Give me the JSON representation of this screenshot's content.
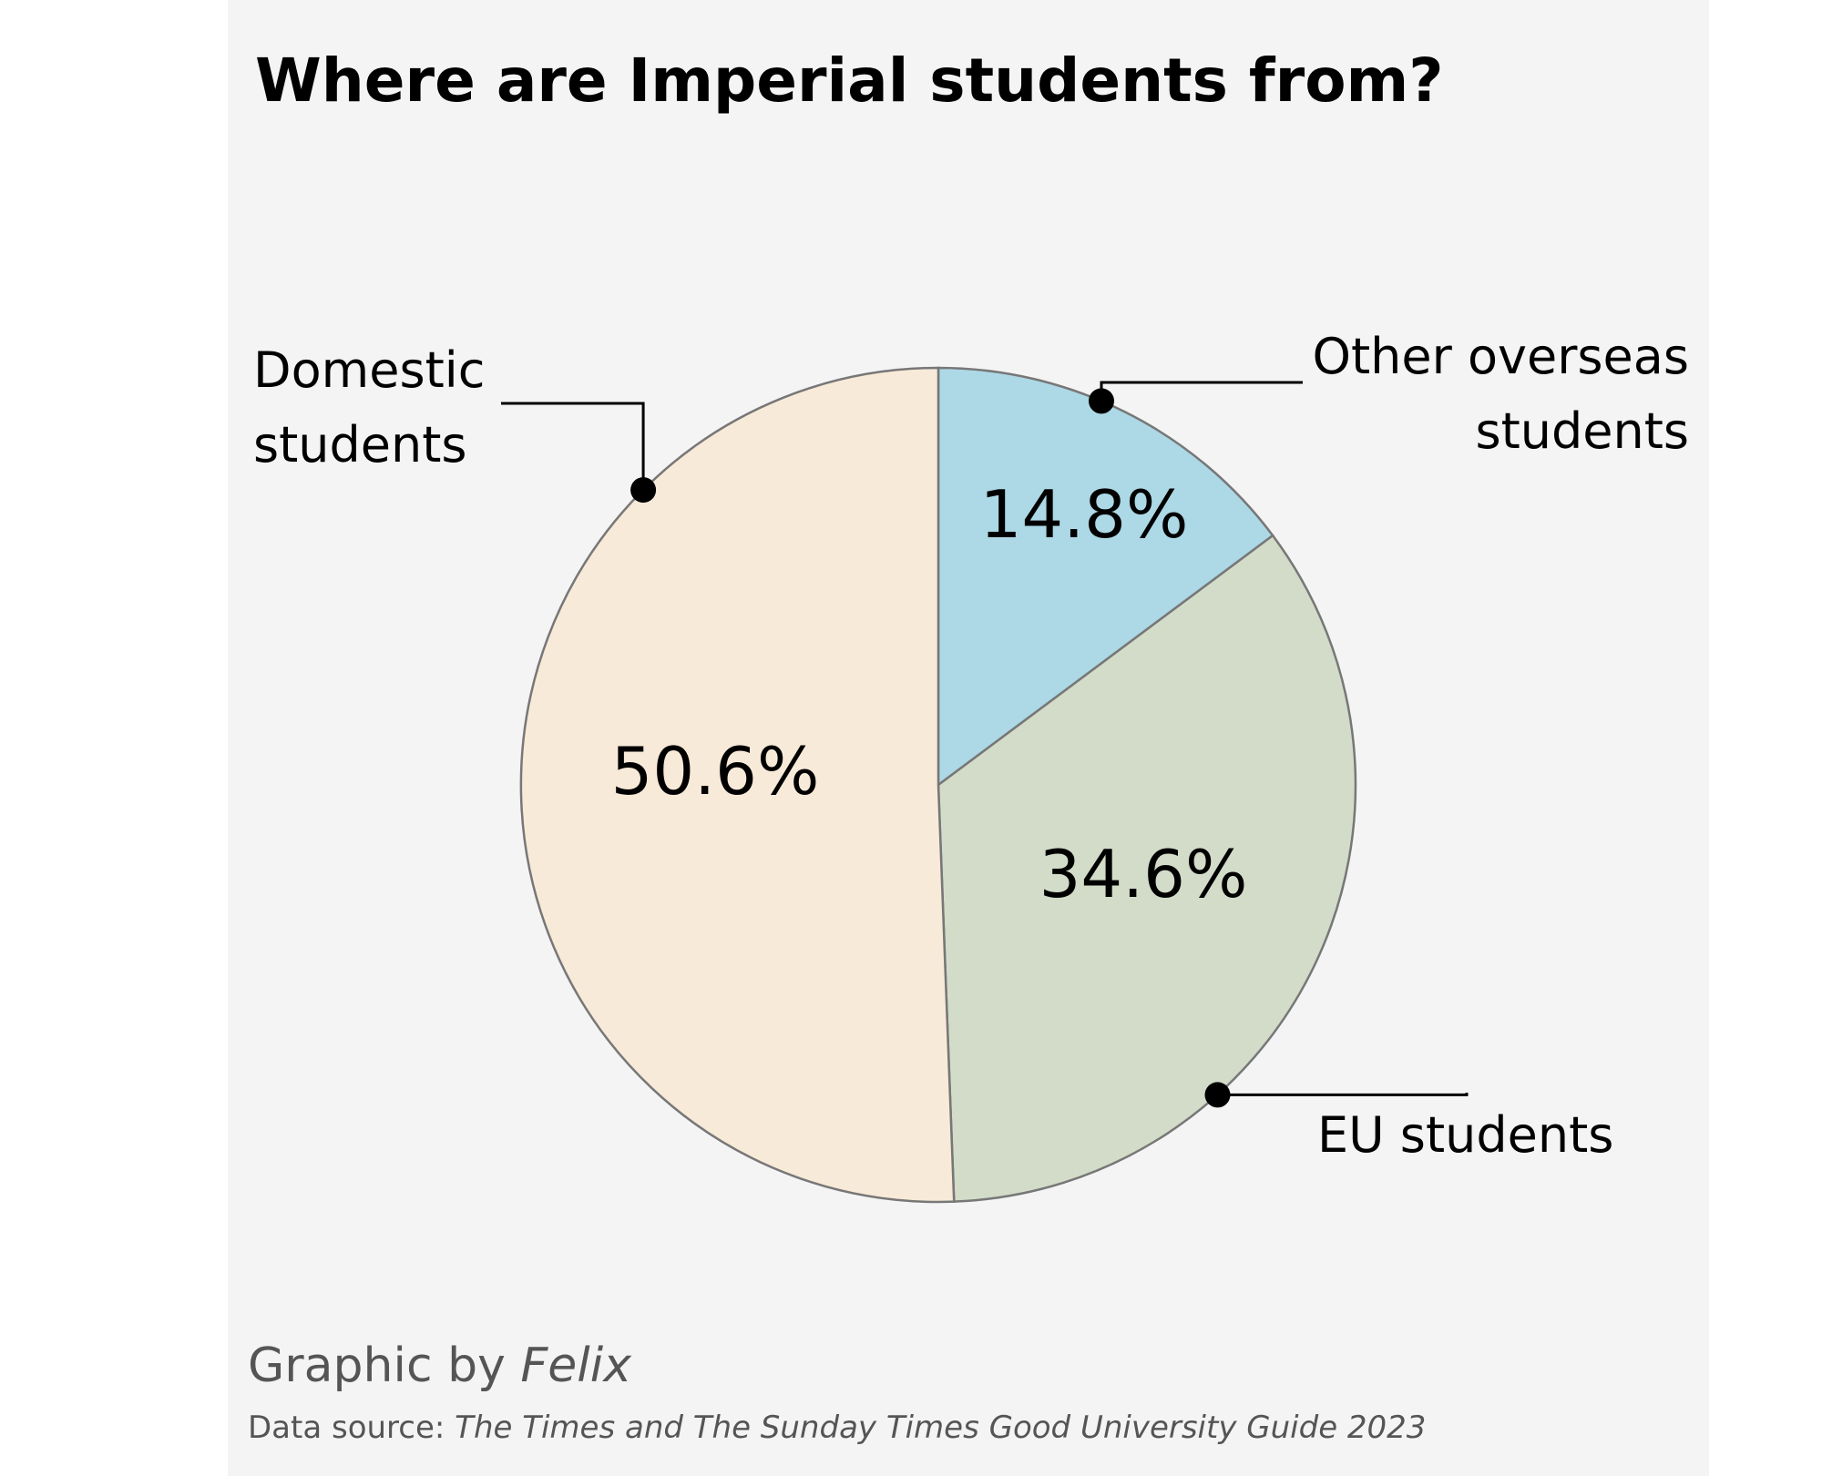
{
  "chart_data": {
    "type": "pie",
    "title": "Where are Imperial students from?",
    "slices": [
      {
        "label": "Other overseas students",
        "label_lines": [
          "Other overseas",
          "students"
        ],
        "value": 14.8,
        "display": "14.8%",
        "color": "#add8e6"
      },
      {
        "label": "EU students",
        "label_lines": [
          "EU students"
        ],
        "value": 34.6,
        "display": "34.6%",
        "color": "#d2dcc8"
      },
      {
        "label": "Domestic students",
        "label_lines": [
          "Domestic",
          "students"
        ],
        "value": 50.6,
        "display": "50.6%",
        "color": "#f8ead8"
      }
    ],
    "start": "12 o'clock",
    "direction": "clockwise"
  },
  "footer": {
    "credit_prefix": "Graphic by ",
    "credit_name": "Felix",
    "source_prefix": "Data source: ",
    "source_name": "The Times and The Sunday Times Good University Guide 2023"
  },
  "colors": {
    "background": "#f4f4f4",
    "outline": "#777777"
  }
}
